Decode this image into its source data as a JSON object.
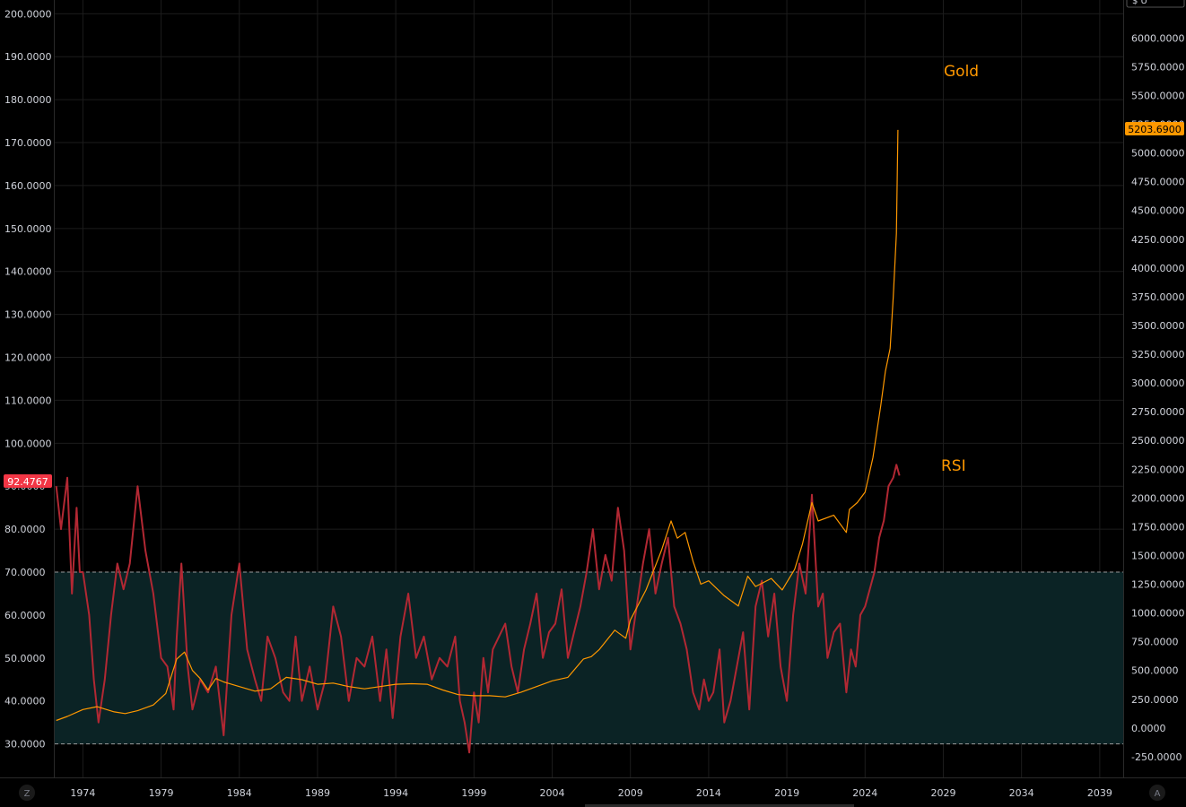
{
  "chart_data": {
    "type": "line",
    "title": "",
    "colors": {
      "gold": "#ff9800",
      "rsi": "#b22833",
      "band_fill": "#0b2325",
      "grid": "#1c1c1c",
      "background": "#000000"
    },
    "x_ticks": [
      "1974",
      "1979",
      "1984",
      "1989",
      "1994",
      "1999",
      "2004",
      "2009",
      "2014",
      "2019",
      "2024",
      "2029",
      "2034",
      "2039"
    ],
    "xlim": [
      1972.2,
      2040.5
    ],
    "left_axis": {
      "label": "",
      "ticks": [
        "200.0000",
        "190.0000",
        "180.0000",
        "170.0000",
        "160.0000",
        "150.0000",
        "140.0000",
        "130.0000",
        "120.0000",
        "110.0000",
        "100.0000",
        "90.0000",
        "80.0000",
        "70.0000",
        "60.0000",
        "50.0000",
        "40.0000",
        "30.0000"
      ],
      "range": [
        22.2,
        203.2
      ]
    },
    "right_axis": {
      "label": "",
      "ticks": [
        "6000.0000",
        "5750.0000",
        "5500.0000",
        "5250.0000",
        "5000.0000",
        "4750.0000",
        "4500.0000",
        "4250.0000",
        "4000.0000",
        "3750.0000",
        "3500.0000",
        "3250.0000",
        "3000.0000",
        "2750.0000",
        "2500.0000",
        "2250.0000",
        "2000.0000",
        "1750.0000",
        "1500.0000",
        "1250.0000",
        "1000.0000",
        "750.0000",
        "500.0000",
        "250.0000",
        "0.0000",
        "-250.0000"
      ],
      "range": [
        -430,
        6330
      ]
    },
    "band": {
      "low": 30,
      "high": 70
    },
    "series": [
      {
        "name": "Gold",
        "axis": "right",
        "color": "#ff9800",
        "x": [
          1972.3,
          1973.0,
          1974.0,
          1974.9,
          1976.0,
          1976.7,
          1977.5,
          1978.5,
          1979.3,
          1980.0,
          1980.5,
          1981.0,
          1981.5,
          1982.0,
          1982.5,
          1983.0,
          1984.0,
          1985.0,
          1985.5,
          1986.0,
          1987.0,
          1988.0,
          1989.0,
          1990.0,
          1991.0,
          1992.0,
          1993.0,
          1994.0,
          1995.0,
          1996.0,
          1997.0,
          1998.0,
          1999.0,
          2000.0,
          2001.0,
          2002.0,
          2003.0,
          2004.0,
          2005.0,
          2006.0,
          2006.5,
          2007.0,
          2008.0,
          2008.7,
          2009.0,
          2010.0,
          2011.0,
          2011.6,
          2012.0,
          2012.5,
          2013.0,
          2013.5,
          2014.0,
          2015.0,
          2015.9,
          2016.5,
          2017.0,
          2018.0,
          2018.7,
          2019.5,
          2020.0,
          2020.6,
          2021.0,
          2022.0,
          2022.8,
          2023.0,
          2023.5,
          2024.0,
          2024.5,
          2025.0,
          2025.3,
          2025.6,
          2025.8,
          2026.0,
          2026.1
        ],
        "y": [
          65,
          100,
          160,
          185,
          140,
          125,
          150,
          200,
          300,
          600,
          660,
          500,
          430,
          330,
          430,
          400,
          360,
          320,
          330,
          340,
          440,
          420,
          380,
          390,
          360,
          340,
          360,
          380,
          385,
          380,
          330,
          290,
          280,
          280,
          270,
          310,
          360,
          410,
          440,
          600,
          620,
          680,
          850,
          780,
          940,
          1200,
          1550,
          1800,
          1650,
          1700,
          1450,
          1250,
          1280,
          1150,
          1060,
          1320,
          1230,
          1300,
          1200,
          1380,
          1600,
          1960,
          1800,
          1850,
          1700,
          1900,
          1960,
          2050,
          2350,
          2800,
          3100,
          3300,
          3750,
          4300,
          5200
        ],
        "last_value": "5203.6900"
      },
      {
        "name": "RSI",
        "axis": "left",
        "color": "#b22833",
        "x": [
          1972.3,
          1972.6,
          1973.0,
          1973.3,
          1973.6,
          1973.8,
          1974.0,
          1974.4,
          1974.7,
          1975.0,
          1975.4,
          1975.8,
          1976.2,
          1976.6,
          1977.0,
          1977.5,
          1978.0,
          1978.5,
          1979.0,
          1979.4,
          1979.8,
          1980.0,
          1980.3,
          1980.7,
          1981.0,
          1981.5,
          1982.0,
          1982.5,
          1983.0,
          1983.5,
          1984.0,
          1984.5,
          1985.0,
          1985.4,
          1985.8,
          1986.3,
          1986.8,
          1987.2,
          1987.6,
          1988.0,
          1988.5,
          1989.0,
          1989.5,
          1990.0,
          1990.5,
          1991.0,
          1991.5,
          1992.0,
          1992.5,
          1993.0,
          1993.4,
          1993.8,
          1994.3,
          1994.8,
          1995.3,
          1995.8,
          1996.3,
          1996.8,
          1997.3,
          1997.8,
          1998.1,
          1998.4,
          1998.7,
          1999.0,
          1999.3,
          1999.6,
          1999.9,
          2000.2,
          2000.6,
          2001.0,
          2001.4,
          2001.8,
          2002.2,
          2002.6,
          2003.0,
          2003.4,
          2003.8,
          2004.2,
          2004.6,
          2005.0,
          2005.4,
          2005.8,
          2006.2,
          2006.6,
          2007.0,
          2007.4,
          2007.8,
          2008.2,
          2008.6,
          2009.0,
          2009.4,
          2009.8,
          2010.2,
          2010.6,
          2011.0,
          2011.4,
          2011.8,
          2012.2,
          2012.6,
          2013.0,
          2013.4,
          2013.7,
          2014.0,
          2014.3,
          2014.7,
          2015.0,
          2015.4,
          2015.8,
          2016.2,
          2016.6,
          2017.0,
          2017.4,
          2017.8,
          2018.2,
          2018.6,
          2019.0,
          2019.4,
          2019.8,
          2020.2,
          2020.6,
          2021.0,
          2021.3,
          2021.6,
          2022.0,
          2022.4,
          2022.8,
          2023.1,
          2023.4,
          2023.7,
          2024.0,
          2024.3,
          2024.6,
          2024.9,
          2025.2,
          2025.5,
          2025.8,
          2026.0,
          2026.2
        ],
        "y": [
          90,
          80,
          92,
          65,
          85,
          70,
          70,
          60,
          45,
          35,
          45,
          60,
          72,
          66,
          72,
          90,
          75,
          65,
          50,
          48,
          38,
          55,
          72,
          48,
          38,
          45,
          42,
          48,
          32,
          60,
          72,
          52,
          45,
          40,
          55,
          50,
          42,
          40,
          55,
          40,
          48,
          38,
          45,
          62,
          55,
          40,
          50,
          48,
          55,
          40,
          52,
          36,
          55,
          65,
          50,
          55,
          45,
          50,
          48,
          55,
          40,
          35,
          28,
          42,
          35,
          50,
          42,
          52,
          55,
          58,
          48,
          42,
          52,
          58,
          65,
          50,
          56,
          58,
          66,
          50,
          56,
          62,
          70,
          80,
          66,
          74,
          68,
          85,
          75,
          52,
          62,
          72,
          80,
          65,
          72,
          78,
          62,
          58,
          52,
          42,
          38,
          45,
          40,
          42,
          52,
          35,
          40,
          48,
          56,
          38,
          62,
          68,
          55,
          65,
          48,
          40,
          60,
          72,
          65,
          88,
          62,
          65,
          50,
          56,
          58,
          42,
          52,
          48,
          60,
          62,
          66,
          70,
          78,
          82,
          90,
          92,
          95,
          92.4767
        ],
        "last_value": "92.4767"
      }
    ],
    "annotations": [
      {
        "text": "Gold",
        "color": "#ff9800"
      },
      {
        "text": "RSI",
        "color": "#ff9800"
      }
    ],
    "corner_labels": {
      "bottom_left": "Z",
      "bottom_right": "A",
      "top_right": "$ U"
    }
  }
}
